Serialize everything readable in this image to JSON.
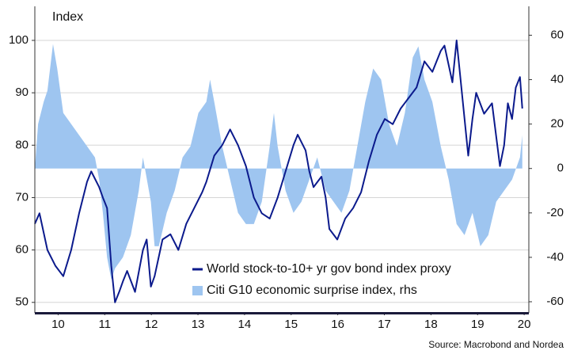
{
  "chart_data": {
    "type": "line-area",
    "annotation": "Index",
    "source": "Source: Macrobond and Nordea",
    "xlim": [
      2010,
      2020.6
    ],
    "xticks": [
      {
        "value": 2010.5,
        "label": "10"
      },
      {
        "value": 2011.5,
        "label": "11"
      },
      {
        "value": 2012.5,
        "label": "12"
      },
      {
        "value": 2013.5,
        "label": "13"
      },
      {
        "value": 2014.5,
        "label": "14"
      },
      {
        "value": 2015.5,
        "label": "15"
      },
      {
        "value": 2016.5,
        "label": "16"
      },
      {
        "value": 2017.5,
        "label": "17"
      },
      {
        "value": 2018.5,
        "label": "18"
      },
      {
        "value": 2019.5,
        "label": "19"
      },
      {
        "value": 2020.5,
        "label": "20"
      }
    ],
    "ylim": [
      48,
      106.5
    ],
    "yticks": [
      50,
      60,
      70,
      80,
      90,
      100
    ],
    "y2lim": [
      -65,
      73
    ],
    "y2ticks": [
      -60,
      -40,
      -20,
      0,
      20,
      40,
      60
    ],
    "grid": true,
    "legend": "lower center",
    "series": [
      {
        "name": "World stock-to-10+ yr gov bond index proxy",
        "color": "#0b1a8c",
        "kind": "line",
        "x": [
          2010.0,
          2010.1,
          2010.27,
          2010.44,
          2010.61,
          2010.78,
          2010.95,
          2011.12,
          2011.21,
          2011.38,
          2011.46,
          2011.55,
          2011.64,
          2011.72,
          2011.81,
          2011.89,
          2011.98,
          2012.15,
          2012.32,
          2012.4,
          2012.49,
          2012.57,
          2012.74,
          2012.91,
          2013.08,
          2013.25,
          2013.42,
          2013.59,
          2013.68,
          2013.85,
          2014.02,
          2014.19,
          2014.36,
          2014.53,
          2014.7,
          2014.87,
          2015.04,
          2015.21,
          2015.38,
          2015.55,
          2015.64,
          2015.81,
          2015.89,
          2015.98,
          2016.15,
          2016.24,
          2016.32,
          2016.49,
          2016.66,
          2016.83,
          2017.0,
          2017.17,
          2017.34,
          2017.51,
          2017.68,
          2017.85,
          2018.02,
          2018.19,
          2018.36,
          2018.53,
          2018.71,
          2018.79,
          2018.96,
          2019.05,
          2019.13,
          2019.3,
          2019.39,
          2019.47,
          2019.64,
          2019.81,
          2019.98,
          2020.07,
          2020.15,
          2020.24,
          2020.32,
          2020.41,
          2020.46
        ],
        "values": [
          65,
          67,
          60,
          57,
          55,
          60,
          67,
          73,
          75,
          72,
          70,
          68,
          57,
          50,
          52,
          54,
          56,
          52,
          60,
          62,
          53,
          55,
          62,
          63,
          60,
          65,
          68,
          71,
          73,
          78,
          80,
          83,
          80,
          76,
          70,
          67,
          66,
          70,
          75,
          80,
          82,
          79,
          75,
          72,
          74,
          70,
          64,
          62,
          66,
          68,
          71,
          77,
          82,
          85,
          84,
          87,
          89,
          91,
          96,
          94,
          98,
          99,
          92,
          100,
          93,
          78,
          85,
          90,
          86,
          88,
          76,
          80,
          88,
          85,
          91,
          93,
          87
        ]
      },
      {
        "name": "Citi G10 economic surprise index, rhs",
        "color": "#9ec5f0",
        "kind": "area",
        "axis": "y2",
        "x": [
          2010.0,
          2010.07,
          2010.19,
          2010.27,
          2010.39,
          2010.48,
          2010.61,
          2010.78,
          2010.95,
          2011.12,
          2011.29,
          2011.38,
          2011.46,
          2011.55,
          2011.64,
          2011.72,
          2011.89,
          2012.06,
          2012.23,
          2012.32,
          2012.49,
          2012.57,
          2012.66,
          2012.83,
          2013.0,
          2013.17,
          2013.34,
          2013.51,
          2013.68,
          2013.76,
          2013.85,
          2014.02,
          2014.19,
          2014.36,
          2014.53,
          2014.7,
          2014.87,
          2015.04,
          2015.13,
          2015.21,
          2015.38,
          2015.55,
          2015.72,
          2015.89,
          2016.06,
          2016.24,
          2016.41,
          2016.58,
          2016.75,
          2016.92,
          2017.09,
          2017.26,
          2017.43,
          2017.6,
          2017.77,
          2017.94,
          2018.11,
          2018.23,
          2018.36,
          2018.53,
          2018.71,
          2018.88,
          2019.05,
          2019.22,
          2019.39,
          2019.56,
          2019.73,
          2019.9,
          2020.07,
          2020.24,
          2020.41,
          2020.46
        ],
        "values": [
          0,
          20,
          30,
          35,
          56,
          45,
          25,
          20,
          15,
          10,
          5,
          -5,
          -20,
          -40,
          -50,
          -45,
          -40,
          -30,
          -10,
          5,
          -15,
          -35,
          -35,
          -20,
          -10,
          5,
          10,
          25,
          30,
          40,
          30,
          10,
          -5,
          -20,
          -25,
          -25,
          -15,
          10,
          25,
          10,
          -10,
          -20,
          -15,
          -5,
          5,
          -10,
          -15,
          -20,
          -10,
          10,
          30,
          45,
          40,
          20,
          10,
          25,
          50,
          55,
          40,
          30,
          10,
          -5,
          -25,
          -30,
          -20,
          -35,
          -30,
          -15,
          -10,
          -5,
          5,
          15
        ]
      }
    ]
  }
}
